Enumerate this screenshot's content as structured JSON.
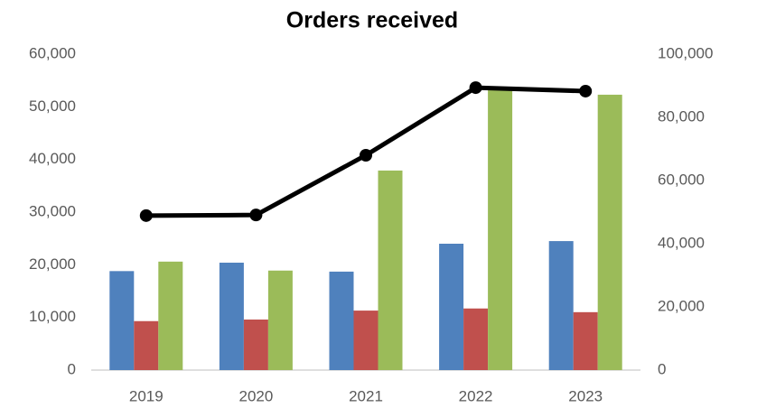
{
  "chart_data": {
    "type": "bar",
    "title": "Orders received",
    "categories": [
      "2019",
      "2020",
      "2021",
      "2022",
      "2023"
    ],
    "series": [
      {
        "type": "bar",
        "color": "#4f81bd",
        "values": [
          18800,
          20400,
          18700,
          24000,
          24500
        ]
      },
      {
        "type": "bar",
        "color": "#c0504d",
        "values": [
          9300,
          9600,
          11300,
          11700,
          11000
        ]
      },
      {
        "type": "bar",
        "color": "#9bbb59",
        "values": [
          20600,
          18900,
          37900,
          53700,
          52300
        ]
      },
      {
        "type": "line",
        "axis": "y2",
        "color": "#000000",
        "values": [
          48900,
          49100,
          68000,
          89400,
          88300
        ]
      }
    ],
    "ylim": [
      0,
      60000
    ],
    "yticks": [
      0,
      {
        "value": 10000,
        "label": "10,000"
      },
      {
        "value": 20000,
        "label": "20,000"
      },
      {
        "value": 30000,
        "label": "30,000"
      },
      {
        "value": 40000,
        "label": "40,000"
      },
      {
        "value": 50000,
        "label": "50,000"
      },
      {
        "value": 60000,
        "label": "60,000"
      }
    ],
    "y2lim": [
      0,
      100000
    ],
    "y2ticks": [
      0,
      {
        "value": 20000,
        "label": "20,000"
      },
      {
        "value": 40000,
        "label": "40,000"
      },
      {
        "value": 60000,
        "label": "60,000"
      },
      {
        "value": 80000,
        "label": "80,000"
      },
      {
        "value": 100000,
        "label": "100,000"
      }
    ],
    "grid": false
  }
}
